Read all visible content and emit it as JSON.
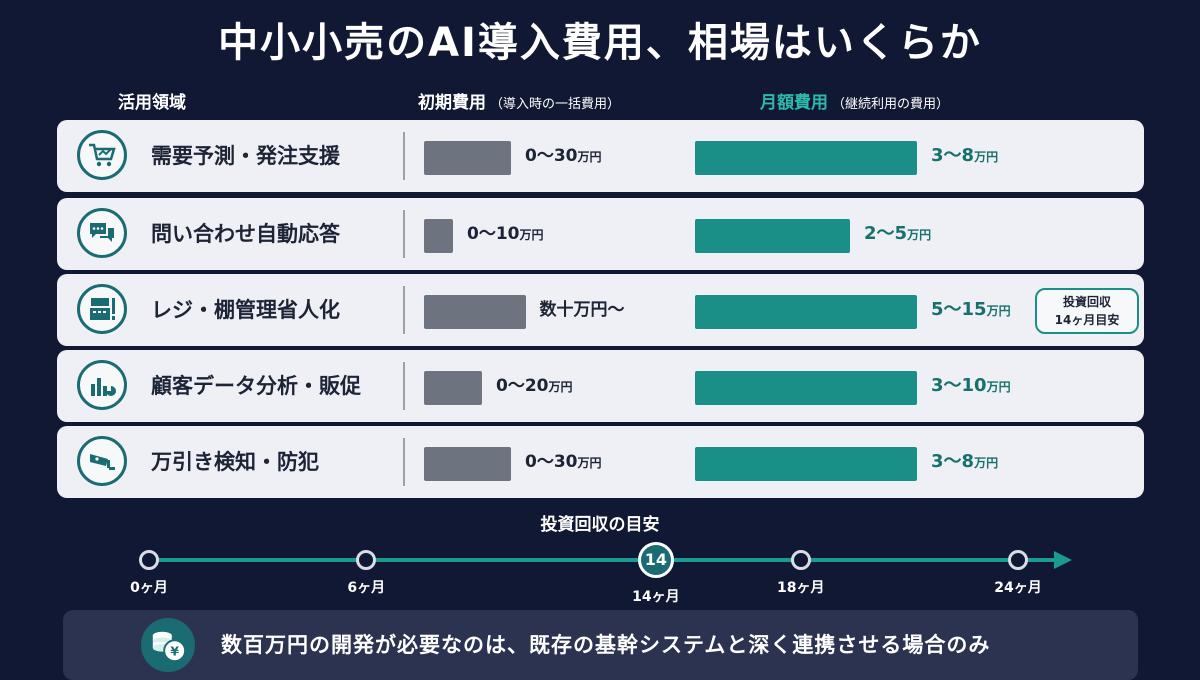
{
  "title": "中小小売のAI導入費用、相場はいくらか",
  "headers": {
    "area": "活用領域",
    "initial": "初期費用",
    "initial_note": "（導入時の一括費用）",
    "monthly": "月額費用",
    "monthly_note": "（継続利用の費用）"
  },
  "chart_data": {
    "type": "bar",
    "categories": [
      "需要予測・発注支援",
      "問い合わせ自動応答",
      "レジ・棚管理省人化",
      "顧客データ分析・販促",
      "万引き検知・防犯"
    ],
    "series": [
      {
        "name": "初期費用",
        "unit": "万円",
        "ranges": [
          [
            0,
            30
          ],
          [
            0,
            10
          ],
          [
            null,
            null
          ],
          [
            0,
            20
          ],
          [
            0,
            30
          ]
        ]
      },
      {
        "name": "月額費用",
        "unit": "万円",
        "ranges": [
          [
            3,
            8
          ],
          [
            2,
            5
          ],
          [
            5,
            15
          ],
          [
            3,
            10
          ],
          [
            3,
            8
          ]
        ]
      }
    ],
    "annotation": "投資回収 14ヶ月目安"
  },
  "rows": [
    {
      "label": "需要予測・発注支援",
      "icon": "cart-chart-icon",
      "init_text": "0〜30",
      "init_unit": "万円",
      "month_text": "3〜8",
      "month_unit": "万円",
      "init_max": 30,
      "month_max": 8
    },
    {
      "label": "問い合わせ自動応答",
      "icon": "chat-bubbles-icon",
      "init_text": "0〜10",
      "init_unit": "万円",
      "month_text": "2〜5",
      "month_unit": "万円",
      "init_max": 10,
      "month_max": 5
    },
    {
      "label": "レジ・棚管理省人化",
      "icon": "register-icon",
      "init_text": "数十万円〜",
      "init_unit": "",
      "month_text": "5〜15",
      "month_unit": "万円",
      "init_max": 35,
      "month_max": 15
    },
    {
      "label": "顧客データ分析・販促",
      "icon": "analytics-icon",
      "init_text": "0〜20",
      "init_unit": "万円",
      "month_text": "3〜10",
      "month_unit": "万円",
      "init_max": 20,
      "month_max": 10
    },
    {
      "label": "万引き検知・防犯",
      "icon": "camera-icon",
      "init_text": "0〜30",
      "init_unit": "万円",
      "month_text": "3〜8",
      "month_unit": "万円",
      "init_max": 30,
      "month_max": 8
    }
  ],
  "badge": {
    "line1": "投資回収",
    "line2": "14ヶ月目安"
  },
  "timeline": {
    "title": "投資回収の目安",
    "unit": "ヶ月",
    "marks": [
      {
        "label": "0ヶ月",
        "month": 0
      },
      {
        "label": "6ヶ月",
        "month": 6
      },
      {
        "label": "14ヶ月",
        "month": 14,
        "highlight": true,
        "value": "14"
      },
      {
        "label": "18ヶ月",
        "month": 18
      },
      {
        "label": "24ヶ月",
        "month": 24
      }
    ]
  },
  "footer": {
    "text": "数百万円の開発が必要なのは、既存の基幹システムと深く連携させる場合のみ",
    "icon": "yen-coins-icon"
  },
  "colors": {
    "background": "#111833",
    "initial_bar": "#6e7380",
    "monthly_bar": "#1a8f88",
    "accent": "#2fb9ab"
  }
}
